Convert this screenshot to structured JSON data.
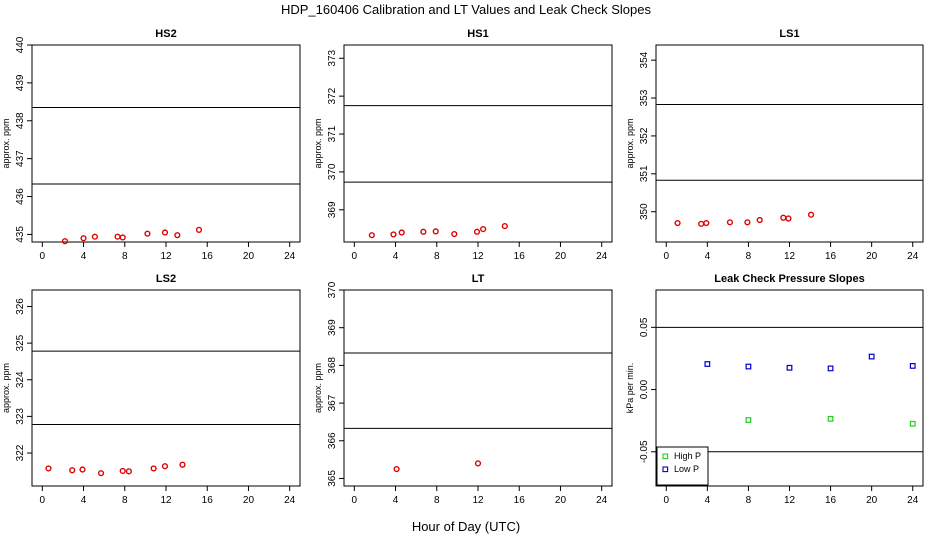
{
  "figure": {
    "title": "HDP_160406  Calibration and LT Values and Leak Check Slopes",
    "xlabel": "Hour of Day (UTC)"
  },
  "chart_data": [
    {
      "type": "scatter",
      "title": "HS2",
      "ylabel": "approx. ppm",
      "xlim": [
        -1,
        25
      ],
      "ylim": [
        434.8,
        440.0
      ],
      "xticks": [
        0,
        4,
        8,
        12,
        16,
        20,
        24
      ],
      "yticks": [
        435,
        436,
        437,
        438,
        439,
        440
      ],
      "hlines": [
        438.35,
        436.33
      ],
      "series": [
        {
          "color": "#e00000",
          "x": [
            2.2,
            4.0,
            5.1,
            7.3,
            7.8,
            10.2,
            11.9,
            13.1,
            15.2
          ],
          "y": [
            434.82,
            434.9,
            434.94,
            434.94,
            434.92,
            435.02,
            435.05,
            434.98,
            435.12
          ]
        }
      ]
    },
    {
      "type": "scatter",
      "title": "HS1",
      "ylabel": "approx. ppm",
      "xlim": [
        -1,
        25
      ],
      "ylim": [
        368.15,
        373.35
      ],
      "xticks": [
        0,
        4,
        8,
        12,
        16,
        20,
        24
      ],
      "yticks": [
        369,
        370,
        371,
        372,
        373
      ],
      "hlines": [
        371.75,
        369.73
      ],
      "series": [
        {
          "color": "#e00000",
          "x": [
            1.7,
            3.8,
            4.6,
            6.7,
            7.9,
            9.7,
            11.9,
            12.5,
            14.6
          ],
          "y": [
            368.33,
            368.35,
            368.4,
            368.42,
            368.43,
            368.36,
            368.42,
            368.49,
            368.57
          ]
        }
      ]
    },
    {
      "type": "scatter",
      "title": "LS1",
      "ylabel": "approx. ppm",
      "xlim": [
        -1,
        25
      ],
      "ylim": [
        349.2,
        354.4
      ],
      "xticks": [
        0,
        4,
        8,
        12,
        16,
        20,
        24
      ],
      "yticks": [
        350,
        351,
        352,
        353,
        354
      ],
      "hlines": [
        352.83,
        350.83
      ],
      "series": [
        {
          "color": "#e00000",
          "x": [
            1.1,
            3.4,
            3.9,
            6.2,
            7.9,
            9.1,
            11.4,
            11.9,
            14.1
          ],
          "y": [
            349.7,
            349.68,
            349.7,
            349.72,
            349.72,
            349.78,
            349.84,
            349.82,
            349.92
          ]
        }
      ]
    },
    {
      "type": "scatter",
      "title": "LS2",
      "ylabel": "approx. ppm",
      "xlim": [
        -1,
        25
      ],
      "ylim": [
        321.1,
        326.45
      ],
      "xticks": [
        0,
        4,
        8,
        12,
        16,
        20,
        24
      ],
      "yticks": [
        322,
        323,
        324,
        325,
        326
      ],
      "hlines": [
        324.78,
        322.78
      ],
      "series": [
        {
          "color": "#e00000",
          "x": [
            0.6,
            2.9,
            3.9,
            5.7,
            7.8,
            8.4,
            10.8,
            11.9,
            13.6
          ],
          "y": [
            321.58,
            321.53,
            321.55,
            321.45,
            321.51,
            321.5,
            321.58,
            321.64,
            321.68
          ]
        }
      ]
    },
    {
      "type": "scatter",
      "title": "LT",
      "ylabel": "approx. ppm",
      "xlim": [
        -1,
        25
      ],
      "ylim": [
        364.8,
        370.0
      ],
      "xticks": [
        0,
        4,
        8,
        12,
        16,
        20,
        24
      ],
      "yticks": [
        365,
        366,
        367,
        368,
        369,
        370
      ],
      "hlines": [
        368.33,
        366.33
      ],
      "series": [
        {
          "color": "#e00000",
          "x": [
            4.1,
            12.0
          ],
          "y": [
            365.25,
            365.4
          ]
        }
      ]
    },
    {
      "type": "scatter",
      "title": "Leak Check Pressure Slopes",
      "ylabel": "kPa per min.",
      "xlim": [
        -1,
        25
      ],
      "ylim": [
        -0.0775,
        0.08
      ],
      "xticks": [
        0,
        4,
        8,
        12,
        16,
        20,
        24
      ],
      "yticks": [
        -0.05,
        0.0,
        0.05
      ],
      "ytick_labels": [
        "-0.05",
        "0.00",
        "0.05"
      ],
      "hlines": [
        0.05,
        -0.05
      ],
      "legend": "bottom-left",
      "series": [
        {
          "name": "High P",
          "color": "#22cc22",
          "x": [
            8.0,
            16.0,
            24.0
          ],
          "y": [
            -0.0245,
            -0.0235,
            -0.0275
          ]
        },
        {
          "name": "Low P",
          "color": "#0000cc",
          "x": [
            4.0,
            8.0,
            12.0,
            16.0,
            20.0,
            24.0
          ],
          "y": [
            0.0205,
            0.0185,
            0.0175,
            0.017,
            0.0265,
            0.019
          ]
        }
      ]
    }
  ]
}
